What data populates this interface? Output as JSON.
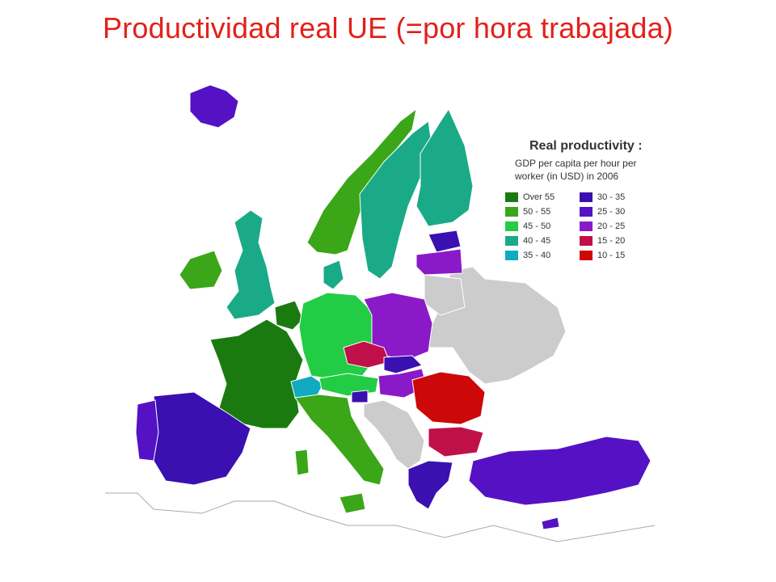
{
  "title": "Productividad real UE (=por hora trabajada)",
  "legend": {
    "title": "Real productivity :",
    "subtitle_lines": [
      "GDP per capita per hour per",
      "worker (in USD) in 2006"
    ],
    "items": [
      {
        "label": "Over 55",
        "color": "#1a7a10"
      },
      {
        "label": "50 - 55",
        "color": "#3aa618"
      },
      {
        "label": "45 - 50",
        "color": "#22cc44"
      },
      {
        "label": "40 - 45",
        "color": "#1aaa88"
      },
      {
        "label": "35 - 40",
        "color": "#12aac0"
      },
      {
        "label": "30 - 35",
        "color": "#3a10b0"
      },
      {
        "label": "25 - 30",
        "color": "#5512c4"
      },
      {
        "label": "20 - 25",
        "color": "#8a1ac8"
      },
      {
        "label": "15 - 20",
        "color": "#c0104a"
      },
      {
        "label": "10 - 15",
        "color": "#cc0808"
      }
    ]
  },
  "colors": {
    "no_data": "#cccccc",
    "border": "#ffffff",
    "outline": "#aaaaaa"
  }
}
